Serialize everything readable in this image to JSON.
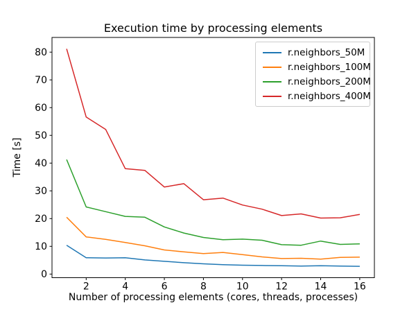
{
  "chart_data": {
    "type": "line",
    "title": "Execution time by processing elements",
    "xlabel": "Number of processing elements (cores, threads, processes)",
    "ylabel": "Time [s]",
    "x": [
      1,
      2,
      3,
      4,
      5,
      6,
      7,
      8,
      9,
      10,
      11,
      12,
      13,
      14,
      15,
      16
    ],
    "series": [
      {
        "name": "r.neighbors_50M",
        "color": "#1f77b4",
        "values": [
          10.4,
          5.9,
          5.8,
          5.9,
          5.1,
          4.6,
          4.1,
          3.7,
          3.4,
          3.2,
          3.1,
          3.0,
          2.9,
          3.0,
          2.9,
          2.8
        ]
      },
      {
        "name": "r.neighbors_100M",
        "color": "#ff7f0e",
        "values": [
          20.5,
          13.4,
          12.5,
          11.4,
          10.2,
          8.7,
          8.0,
          7.4,
          7.8,
          7.0,
          6.2,
          5.6,
          5.7,
          5.4,
          6.0,
          6.1
        ]
      },
      {
        "name": "r.neighbors_200M",
        "color": "#2ca02c",
        "values": [
          41.3,
          24.2,
          22.5,
          20.8,
          20.5,
          17.0,
          14.8,
          13.2,
          12.4,
          12.6,
          12.2,
          10.6,
          10.4,
          11.9,
          10.7,
          10.9
        ]
      },
      {
        "name": "r.neighbors_400M",
        "color": "#d62728",
        "values": [
          81.2,
          56.6,
          52.1,
          38.0,
          37.4,
          31.4,
          32.6,
          26.8,
          27.4,
          24.9,
          23.4,
          21.1,
          21.7,
          20.2,
          20.3,
          21.5
        ]
      }
    ],
    "x_ticks": [
      2,
      4,
      6,
      8,
      10,
      12,
      14,
      16
    ],
    "y_ticks": [
      0,
      10,
      20,
      30,
      40,
      50,
      60,
      70,
      80
    ],
    "xlim": [
      0.25,
      16.75
    ],
    "ylim": [
      -1.3,
      85.3
    ],
    "grid": false,
    "legend_position": "upper right",
    "axis_color": "#000000",
    "background_color": "#ffffff"
  }
}
